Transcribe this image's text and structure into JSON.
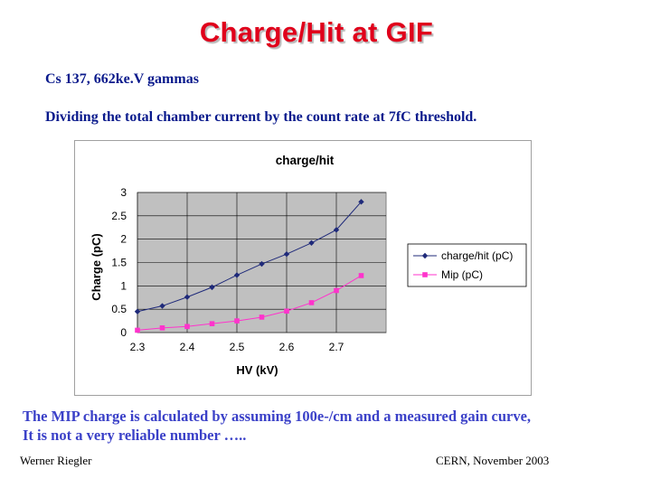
{
  "slide": {
    "title": "Charge/Hit at GIF",
    "line1": "Cs 137, 662ke.V gammas",
    "line2": "Dividing the total chamber current by the count rate at 7fC threshold.",
    "note_line1": "The MIP charge is calculated by assuming 100e-/cm and a measured gain curve,",
    "note_line2": "It is not a very reliable number …..",
    "footer_left": "Werner Riegler",
    "footer_right": "CERN, November 2003"
  },
  "colors": {
    "title": "#e0001b",
    "text_blue": "#0a1a8c",
    "note_blue": "#3b41c8",
    "plot_bg": "#c0c0c0",
    "series1": "#1f2a7a",
    "series2": "#ff33cc"
  },
  "chart_data": {
    "type": "line",
    "title": "charge/hit",
    "xlabel": "HV (kV)",
    "ylabel": "Charge (pC)",
    "xlim": [
      2.3,
      2.8
    ],
    "ylim": [
      0,
      3
    ],
    "xticks": [
      "2.3",
      "2.4",
      "2.5",
      "2.6",
      "2.7"
    ],
    "yticks": [
      "0",
      "0.5",
      "1",
      "1.5",
      "2",
      "2.5",
      "3"
    ],
    "grid": true,
    "legend": "right",
    "x": [
      2.3,
      2.35,
      2.4,
      2.45,
      2.5,
      2.55,
      2.6,
      2.65,
      2.7,
      2.75
    ],
    "series": [
      {
        "name": "charge/hit (pC)",
        "marker": "diamond",
        "color": "#1f2a7a",
        "values": [
          0.45,
          0.57,
          0.76,
          0.97,
          1.23,
          1.47,
          1.68,
          1.92,
          2.2,
          2.8
        ]
      },
      {
        "name": "Mip (pC)",
        "marker": "square",
        "color": "#ff33cc",
        "values": [
          0.05,
          0.1,
          0.13,
          0.19,
          0.25,
          0.33,
          0.46,
          0.64,
          0.9,
          1.22
        ]
      }
    ]
  }
}
